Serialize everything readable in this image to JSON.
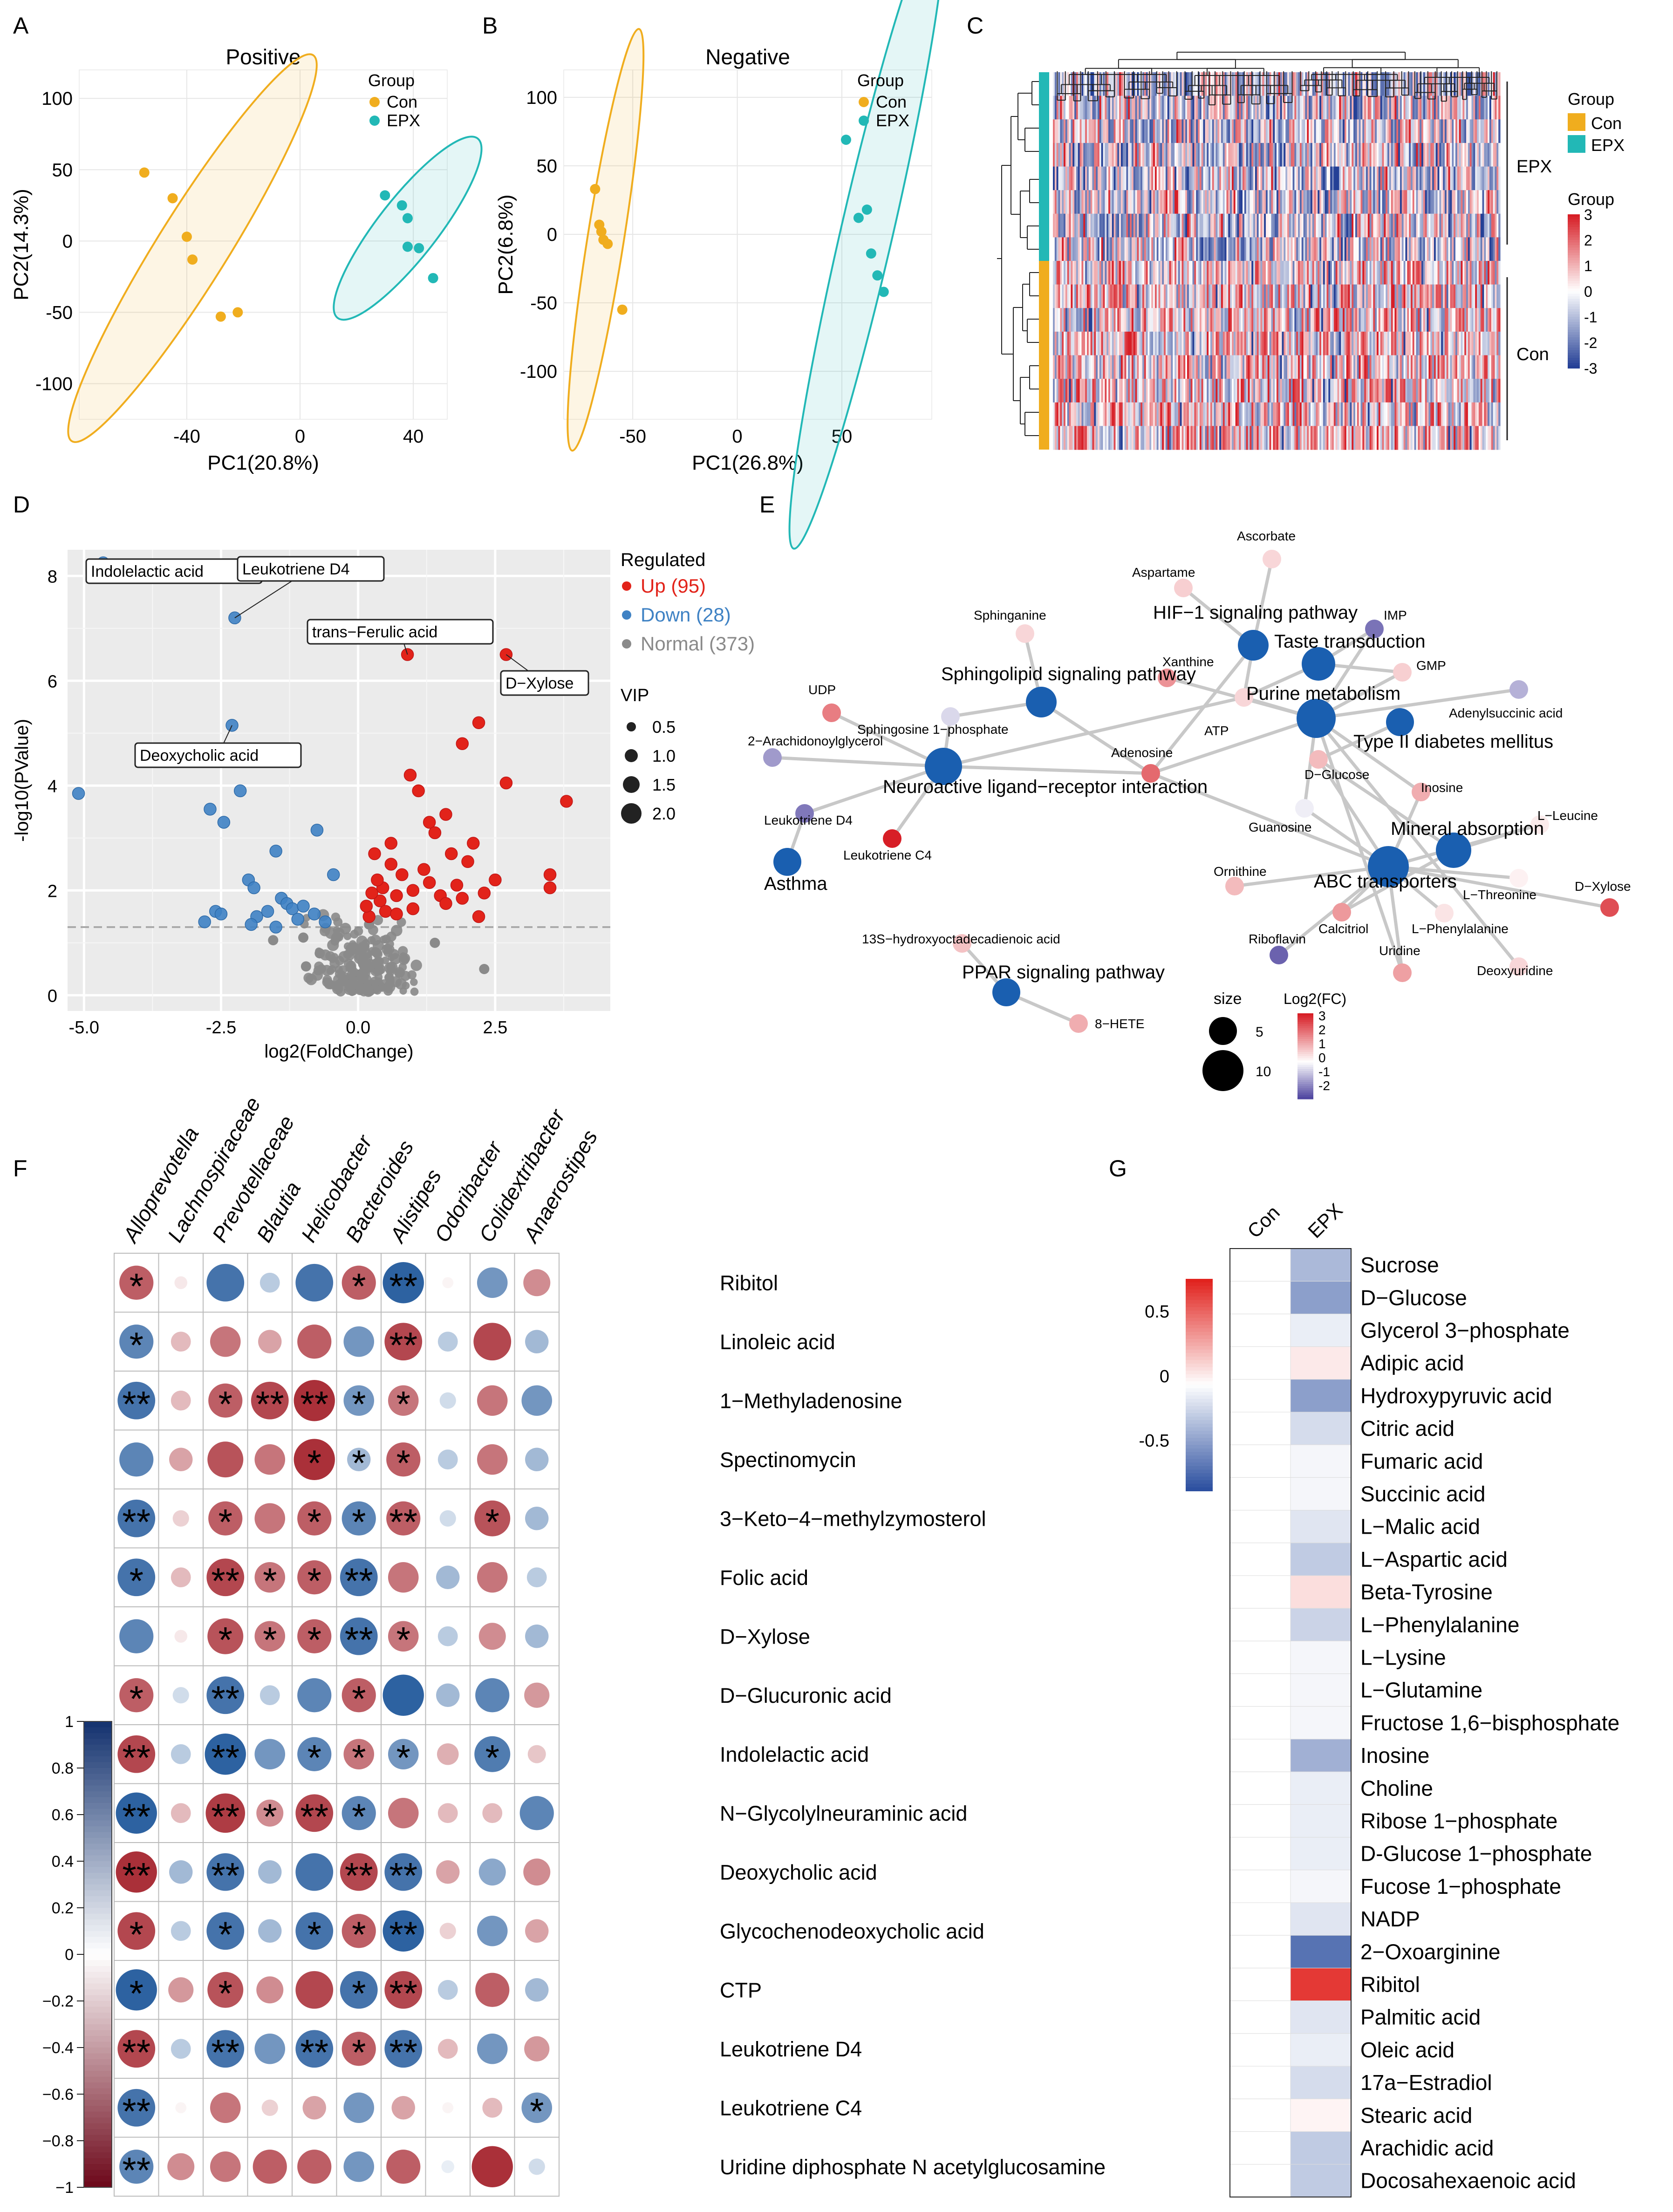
{
  "colors": {
    "con": "#f0ad1e",
    "epx": "#22b8b6",
    "up": "#e2231a",
    "down": "#3f82c4",
    "normal": "#8a8a8a",
    "pathway": "#1a5fb0"
  },
  "panels": {
    "a": "A",
    "b": "B",
    "c": "C",
    "d": "D",
    "e": "E",
    "f": "F",
    "g": "G"
  },
  "chart_data": [
    {
      "id": "A",
      "type": "scatter",
      "title": "Positive",
      "xlabel": "PC1(20.8%)",
      "ylabel": "PC2(14.3%)",
      "xlim": [
        -78,
        52
      ],
      "ylim": [
        -125,
        120
      ],
      "xticks": [
        -40,
        0,
        40
      ],
      "yticks": [
        -100,
        -50,
        0,
        50,
        100
      ],
      "legend_title": "Group",
      "legend": [
        "Con",
        "EPX"
      ],
      "series": [
        {
          "name": "Con",
          "x": [
            -55,
            -45,
            -40,
            -38,
            -28,
            -22
          ],
          "y": [
            48,
            30,
            3,
            -13,
            -53,
            -50
          ],
          "ellipse": {
            "cx": -38,
            "cy": -5,
            "rx": 84,
            "ry": 13,
            "angle": -58
          }
        },
        {
          "name": "EPX",
          "x": [
            30,
            36,
            38,
            38,
            42,
            47
          ],
          "y": [
            32,
            25,
            16,
            -4,
            -5,
            -26
          ],
          "ellipse": {
            "cx": 38,
            "cy": 9,
            "rx": 42,
            "ry": 11,
            "angle": -52
          }
        }
      ]
    },
    {
      "id": "B",
      "type": "scatter",
      "title": "Negative",
      "xlabel": "PC1(26.8%)",
      "ylabel": "PC2(6.8%)",
      "xlim": [
        -83,
        93
      ],
      "ylim": [
        -135,
        120
      ],
      "xticks": [
        -50,
        0,
        50
      ],
      "yticks": [
        -100,
        -50,
        0,
        50,
        100
      ],
      "legend_title": "Group",
      "legend": [
        "Con",
        "EPX"
      ],
      "series": [
        {
          "name": "Con",
          "x": [
            -68,
            -66,
            -65,
            -64,
            -62,
            -55
          ],
          "y": [
            33,
            7,
            2,
            -4,
            -7,
            -55
          ],
          "ellipse": {
            "cx": -63,
            "cy": -4,
            "rx": 82,
            "ry": 7,
            "angle": -81
          }
        },
        {
          "name": "EPX",
          "x": [
            52,
            58,
            62,
            64,
            67,
            70
          ],
          "y": [
            69,
            12,
            18,
            -14,
            -30,
            -42
          ],
          "ellipse": {
            "cx": 62,
            "cy": 2,
            "rx": 125,
            "ry": 10,
            "angle": -77
          }
        }
      ]
    },
    {
      "id": "C",
      "type": "heatmap",
      "legend_group_title": "Group",
      "legend_group": [
        "Con",
        "EPX"
      ],
      "scale_title": "Group",
      "scale_ticks": [
        3,
        2,
        1,
        0,
        -1,
        -2,
        -3
      ],
      "row_groups": [
        "EPX",
        "Con"
      ],
      "rows_per_group": 8,
      "columns": 250
    },
    {
      "id": "D",
      "type": "scatter",
      "subtype": "volcano",
      "xlabel": "log2(FoldChange)",
      "ylabel": "-log10(PValue)",
      "xlim": [
        -5.3,
        4.6
      ],
      "ylim": [
        -0.3,
        8.5
      ],
      "xticks": [
        -5.0,
        -2.5,
        0.0,
        2.5
      ],
      "yticks": [
        0,
        2,
        4,
        6,
        8
      ],
      "threshold_y": 1.3,
      "legend_title": "Regulated",
      "legend": [
        "Up (95)",
        "Down (28)",
        "Normal (373)"
      ],
      "vip_title": "VIP",
      "vip_values": [
        "0.5",
        "1.0",
        "1.5",
        "2.0"
      ],
      "labels": [
        {
          "text": "Indolelactic acid",
          "x": -4.65,
          "y": 8.25
        },
        {
          "text": "Leukotriene D4",
          "x": -2.25,
          "y": 7.2
        },
        {
          "text": "trans−Ferulic acid",
          "x": 0.9,
          "y": 6.5
        },
        {
          "text": "D−Xylose",
          "x": 2.7,
          "y": 6.5
        },
        {
          "text": "Deoxycholic acid",
          "x": -2.3,
          "y": 5.15
        }
      ],
      "up": {
        "x": [
          2.7,
          0.9,
          2.2,
          1.9,
          2.7,
          1.6,
          1.1,
          1.3,
          0.95,
          0.3,
          0.6,
          1.4,
          3.8,
          3.5,
          3.5,
          1.2,
          2.0,
          1.7,
          2.1,
          2.5,
          0.7,
          0.4,
          0.5,
          1.0,
          1.5,
          1.8,
          0.2,
          0.15,
          2.3,
          1.9,
          0.8,
          0.6,
          1.3,
          1.0,
          0.45,
          0.35,
          0.25,
          0.7,
          1.6,
          2.2
        ],
        "y": [
          6.5,
          6.5,
          5.2,
          4.8,
          4.05,
          3.45,
          3.9,
          3.3,
          4.2,
          2.7,
          2.9,
          3.1,
          3.7,
          2.3,
          2.05,
          2.4,
          2.55,
          2.7,
          2.9,
          2.2,
          1.9,
          1.8,
          1.6,
          2.0,
          1.9,
          2.1,
          1.5,
          1.7,
          1.95,
          1.85,
          2.3,
          2.5,
          2.15,
          1.65,
          2.05,
          2.2,
          1.95,
          1.55,
          1.75,
          1.5
        ]
      },
      "down": {
        "x": [
          -4.65,
          -5.1,
          -2.25,
          -2.3,
          -2.7,
          -2.45,
          -2.15,
          -1.5,
          -0.75,
          -0.45,
          -2.8,
          -2.6,
          -2.0,
          -1.9,
          -1.85,
          -1.4,
          -1.3,
          -1.2,
          -1.1,
          -1.0,
          -0.8,
          -0.6,
          -1.95,
          -1.65,
          -2.5,
          -1.5
        ],
        "y": [
          8.25,
          3.85,
          7.2,
          5.15,
          3.55,
          3.3,
          3.9,
          2.75,
          3.15,
          2.3,
          1.4,
          1.6,
          2.2,
          2.05,
          1.5,
          1.85,
          1.75,
          1.65,
          1.45,
          1.7,
          1.55,
          1.4,
          1.35,
          1.6,
          1.55,
          1.3
        ]
      }
    },
    {
      "id": "E",
      "type": "network",
      "size_title": "size",
      "size_values": [
        "5",
        "10"
      ],
      "fc_title": "Log2(FC)",
      "fc_ticks": [
        "3",
        "2",
        "1",
        "0",
        "-1",
        "-2"
      ],
      "pathways": [
        "HIF−1 signaling pathway",
        "Taste transduction",
        "Purine metabolism",
        "Type II diabetes mellitus",
        "Sphingolipid signaling pathway",
        "Neuroactive ligand−receptor interaction",
        "Asthma",
        "Mineral absorption",
        "ABC transporters",
        "PPAR signaling pathway"
      ],
      "metabolites": [
        "Ascorbate",
        "Aspartame",
        "Sphinganine",
        "IMP",
        "Xanthine",
        "GMP",
        "UDP",
        "Sphingosine 1−phosphate",
        "ATP",
        "Adenylsuccinic acid",
        "2−Arachidonoylglycerol",
        "Adenosine",
        "D−Glucose",
        "Inosine",
        "Leukotriene D4",
        "Guanosine",
        "L−Leucine",
        "Leukotriene C4",
        "Ornithine",
        "L−Threonine",
        "D−Xylose",
        "Calcitriol",
        "L−Phenylalanine",
        "Riboflavin",
        "Uridine",
        "Deoxyuridine",
        "13S−hydroxyoctadecadienoic acid",
        "8−HETE"
      ]
    },
    {
      "id": "F",
      "type": "heatmap",
      "subtype": "correlation",
      "columns": [
        "Alloprevotella",
        "Lachnospiraceae",
        "Prevotellaceae",
        "Blautia",
        "Helicobacter",
        "Bacteroides",
        "Alistipes",
        "Odoribacter",
        "Colidextribacter",
        "Anaerostipes"
      ],
      "rows": [
        "Ribitol",
        "Linoleic acid",
        "1−Methyladenosine",
        "Spectinomycin",
        "3−Keto−4−methylzymosterol",
        "Folic acid",
        "D−Xylose",
        "D−Glucuronic acid",
        "Indolelactic acid",
        "N−Glycolylneuraminic acid",
        "Deoxycholic acid",
        "Glycochenodeoxycholic acid",
        "CTP",
        "Leukotriene D4",
        "Leukotriene C4",
        "Uridine diphosphate N acetylglucosamine"
      ],
      "values": [
        [
          -0.7,
          -0.1,
          0.8,
          0.3,
          0.8,
          -0.7,
          0.9,
          -0.05,
          0.6,
          -0.5
        ],
        [
          0.7,
          -0.3,
          -0.6,
          -0.4,
          -0.7,
          0.6,
          -0.8,
          0.3,
          -0.8,
          0.4
        ],
        [
          0.8,
          -0.3,
          -0.7,
          -0.8,
          -0.9,
          0.6,
          -0.6,
          0.2,
          -0.6,
          0.6
        ],
        [
          0.7,
          -0.4,
          -0.75,
          -0.6,
          -0.9,
          0.4,
          -0.7,
          0.3,
          -0.6,
          0.4
        ],
        [
          0.8,
          -0.2,
          -0.7,
          -0.6,
          -0.7,
          0.7,
          -0.7,
          0.2,
          -0.75,
          0.4
        ],
        [
          0.8,
          -0.3,
          -0.8,
          -0.6,
          -0.7,
          0.8,
          -0.6,
          0.4,
          -0.6,
          0.3
        ],
        [
          0.7,
          -0.1,
          -0.75,
          -0.6,
          -0.7,
          0.8,
          -0.6,
          0.3,
          -0.5,
          0.4
        ],
        [
          -0.7,
          0.2,
          0.8,
          0.3,
          0.7,
          -0.7,
          0.9,
          0.4,
          0.7,
          -0.45
        ],
        [
          -0.8,
          0.3,
          0.9,
          0.6,
          0.7,
          -0.6,
          0.6,
          -0.35,
          0.75,
          -0.25
        ],
        [
          0.9,
          -0.3,
          -0.85,
          -0.5,
          -0.8,
          0.7,
          -0.6,
          -0.3,
          -0.3,
          0.7
        ],
        [
          -0.9,
          0.4,
          0.8,
          0.4,
          0.8,
          -0.8,
          0.8,
          -0.4,
          0.5,
          -0.5
        ],
        [
          -0.8,
          0.3,
          0.8,
          0.4,
          0.8,
          -0.7,
          0.9,
          -0.2,
          0.6,
          -0.4
        ],
        [
          0.9,
          -0.45,
          -0.75,
          -0.5,
          -0.8,
          0.8,
          -0.8,
          0.3,
          -0.7,
          0.4
        ],
        [
          -0.8,
          0.3,
          0.8,
          0.6,
          0.8,
          -0.7,
          0.8,
          -0.3,
          0.6,
          -0.45
        ],
        [
          0.8,
          -0.05,
          -0.6,
          -0.2,
          -0.4,
          0.6,
          -0.4,
          -0.05,
          -0.3,
          0.6
        ],
        [
          0.7,
          -0.5,
          -0.6,
          -0.7,
          -0.7,
          0.6,
          -0.7,
          0.1,
          -0.9,
          0.2
        ]
      ],
      "stars": [
        [
          "*",
          "",
          "",
          "",
          "",
          "*",
          "**",
          "",
          "",
          ""
        ],
        [
          "*",
          "",
          "",
          "",
          "",
          "",
          "**",
          "",
          "",
          ""
        ],
        [
          "**",
          "",
          "*",
          "**",
          "**",
          "*",
          "*",
          "",
          "",
          ""
        ],
        [
          "",
          "",
          "",
          "",
          "*",
          "*",
          "*",
          "",
          "",
          ""
        ],
        [
          "**",
          "",
          "*",
          "",
          "*",
          "*",
          "**",
          "",
          "*",
          ""
        ],
        [
          "*",
          "",
          "**",
          "*",
          "*",
          "**",
          "",
          "",
          "",
          ""
        ],
        [
          "",
          "",
          "*",
          "*",
          "*",
          "**",
          "*",
          "",
          "",
          ""
        ],
        [
          "*",
          "",
          "**",
          "",
          "",
          "*",
          "",
          "",
          "",
          ""
        ],
        [
          "**",
          "",
          "**",
          "",
          "*",
          "*",
          "*",
          "",
          "*",
          ""
        ],
        [
          "**",
          "",
          "**",
          "*",
          "**",
          "*",
          "",
          "",
          "",
          ""
        ],
        [
          "**",
          "",
          "**",
          "",
          "",
          "**",
          "**",
          "",
          "",
          ""
        ],
        [
          "*",
          "",
          "*",
          "",
          "*",
          "*",
          "**",
          "",
          "",
          ""
        ],
        [
          "*",
          "",
          "*",
          "",
          "",
          "*",
          "**",
          "",
          "",
          ""
        ],
        [
          "**",
          "",
          "**",
          "",
          "**",
          "*",
          "**",
          "",
          "",
          ""
        ],
        [
          "**",
          "",
          "",
          "",
          "",
          "",
          "",
          "",
          "",
          "*"
        ],
        [
          "**",
          "",
          "",
          "",
          "",
          "",
          "",
          "",
          "",
          ""
        ]
      ],
      "scale_ticks": [
        "1",
        "0.8",
        "0.6",
        "0.4",
        "0.2",
        "0",
        "−0.2",
        "−0.4",
        "−0.6",
        "−0.8",
        "−1"
      ]
    },
    {
      "id": "G",
      "type": "heatmap",
      "columns": [
        "Con",
        "EPX"
      ],
      "rows": [
        "Sucrose",
        "D−Glucose",
        "Glycerol 3−phosphate",
        "Adipic acid",
        "Hydroxypyruvic acid",
        "Citric acid",
        "Fumaric acid",
        "Succinic acid",
        "L−Malic acid",
        "L−Aspartic acid",
        "Beta-Tyrosine",
        "L−Phenylalanine",
        "L−Lysine",
        "L−Glutamine",
        "Fructose 1,6−bisphosphate",
        "Inosine",
        "Choline",
        "Ribose 1−phosphate",
        "D-Glucose 1−phosphate",
        "Fucose 1−phosphate",
        "NADP",
        "2−Oxoarginine",
        "Ribitol",
        "Palmitic acid",
        "Oleic acid",
        "17a−Estradiol",
        "Stearic acid",
        "Arachidic acid",
        "Docosahexaenoic acid"
      ],
      "values": [
        [
          0,
          -0.4
        ],
        [
          0,
          -0.55
        ],
        [
          0,
          -0.1
        ],
        [
          0,
          0.1
        ],
        [
          0,
          -0.55
        ],
        [
          0,
          -0.2
        ],
        [
          0,
          -0.05
        ],
        [
          0,
          -0.05
        ],
        [
          0,
          -0.15
        ],
        [
          0,
          -0.3
        ],
        [
          0,
          0.15
        ],
        [
          0,
          -0.25
        ],
        [
          0,
          -0.05
        ],
        [
          0,
          -0.05
        ],
        [
          0,
          -0.05
        ],
        [
          0,
          -0.45
        ],
        [
          0,
          -0.1
        ],
        [
          0,
          -0.1
        ],
        [
          0,
          -0.1
        ],
        [
          0,
          -0.05
        ],
        [
          0,
          -0.15
        ],
        [
          0,
          -0.8
        ],
        [
          0,
          0.9
        ],
        [
          0,
          -0.15
        ],
        [
          0,
          -0.1
        ],
        [
          0,
          -0.2
        ],
        [
          0,
          0.05
        ],
        [
          0,
          -0.3
        ],
        [
          0,
          -0.3
        ]
      ],
      "scale_ticks": [
        "0.5",
        "0",
        "-0.5"
      ]
    }
  ]
}
